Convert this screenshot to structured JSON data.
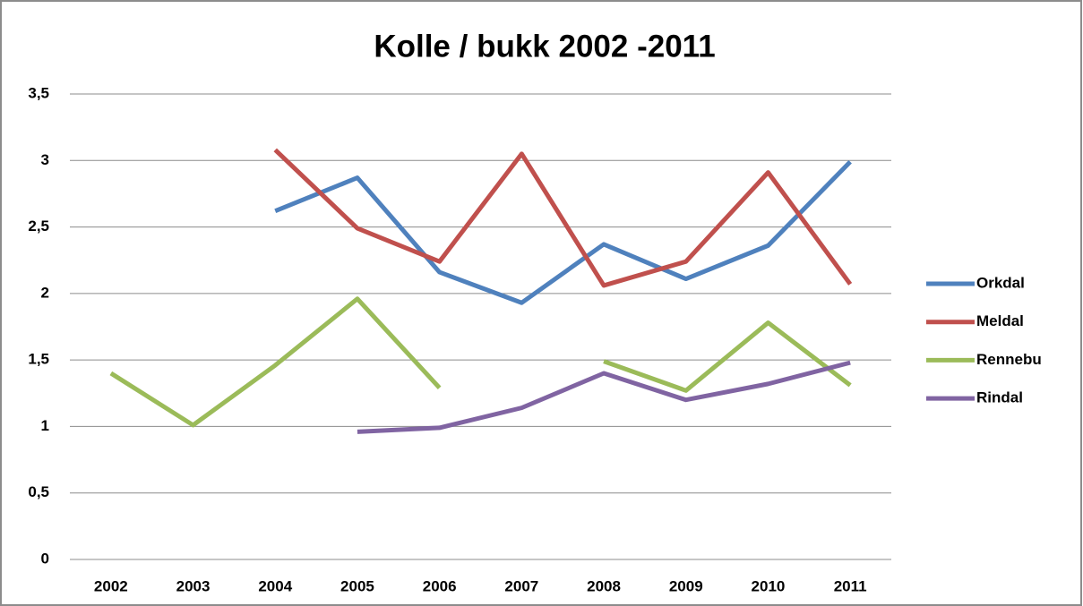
{
  "chart_data": {
    "type": "line",
    "title": "Kolle / bukk 2002 -2011",
    "categories": [
      "2002",
      "2003",
      "2004",
      "2005",
      "2006",
      "2007",
      "2008",
      "2009",
      "2010",
      "2011"
    ],
    "series": [
      {
        "name": "Orkdal",
        "color": "#4f81bd",
        "values": [
          null,
          null,
          2.62,
          2.87,
          2.16,
          1.93,
          2.37,
          2.11,
          2.36,
          2.99
        ]
      },
      {
        "name": "Meldal",
        "color": "#c0504d",
        "values": [
          null,
          null,
          3.08,
          2.49,
          2.24,
          3.05,
          2.06,
          2.24,
          2.91,
          2.07
        ]
      },
      {
        "name": "Rennebu",
        "color": "#9bbb59",
        "values": [
          1.4,
          1.01,
          1.46,
          1.96,
          1.29,
          null,
          1.49,
          1.27,
          1.78,
          1.31
        ]
      },
      {
        "name": "Rindal",
        "color": "#8064a2",
        "values": [
          null,
          null,
          null,
          0.96,
          0.99,
          1.14,
          1.4,
          1.2,
          1.32,
          1.48
        ]
      }
    ],
    "ylim": [
      0,
      3.5
    ],
    "yticks": [
      0,
      {
        "value": 0.5,
        "label": "0,5"
      },
      1,
      {
        "value": 1.5,
        "label": "1,5"
      },
      2,
      {
        "value": 2.5,
        "label": "2,5"
      },
      3,
      {
        "value": 3.5,
        "label": "3,5"
      }
    ],
    "grid": true,
    "legend": "right"
  }
}
